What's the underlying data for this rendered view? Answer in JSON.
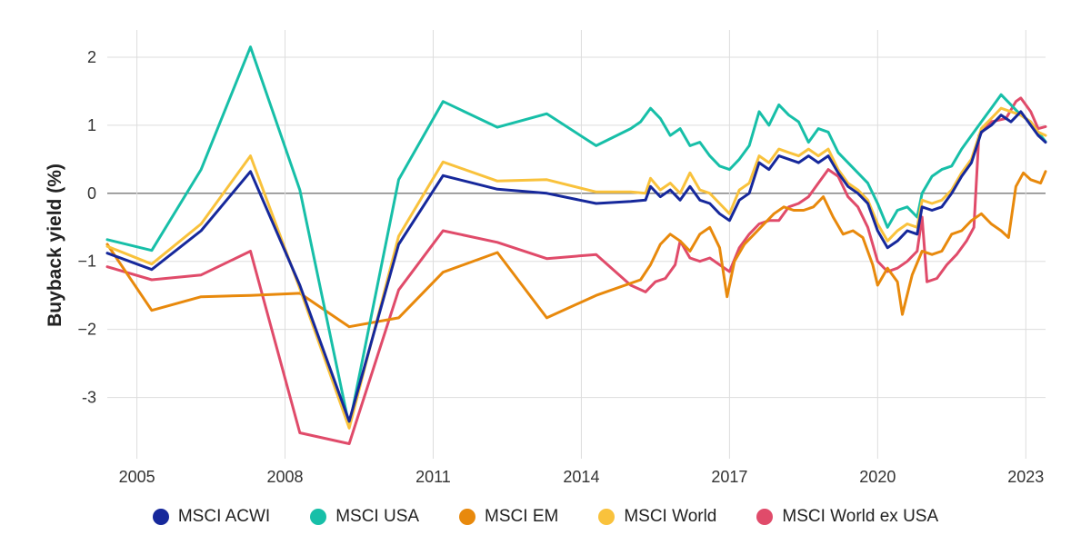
{
  "chart_data": {
    "type": "line",
    "title": "",
    "xlabel": "",
    "ylabel": "Buyback yield (%)",
    "xlim": [
      2004.4,
      2023.4
    ],
    "ylim": [
      -3.9,
      2.4
    ],
    "x_ticks": [
      2005,
      2008,
      2011,
      2014,
      2017,
      2020,
      2023
    ],
    "x_tick_labels": [
      "2005",
      "2008",
      "2011",
      "2014",
      "2017",
      "2020",
      "2023"
    ],
    "y_ticks": [
      -3,
      -2,
      -1,
      0,
      1,
      2
    ],
    "y_tick_labels": [
      "-3",
      "−2",
      "−1",
      "0",
      "1",
      "2"
    ],
    "grid": true,
    "zero_line": true,
    "legend_position": "bottom",
    "series": [
      {
        "name": "MSCI World ex USA",
        "color": "#E04B6A",
        "points": [
          [
            2004.4,
            -1.08
          ],
          [
            2005.3,
            -1.27
          ],
          [
            2006.3,
            -1.2
          ],
          [
            2007.3,
            -0.85
          ],
          [
            2008.3,
            -3.52
          ],
          [
            2009.3,
            -3.68
          ],
          [
            2010.3,
            -1.42
          ],
          [
            2011.2,
            -0.55
          ],
          [
            2012.3,
            -0.72
          ],
          [
            2013.3,
            -0.96
          ],
          [
            2014.3,
            -0.9
          ],
          [
            2015.0,
            -1.35
          ],
          [
            2015.3,
            -1.45
          ],
          [
            2015.5,
            -1.3
          ],
          [
            2015.7,
            -1.25
          ],
          [
            2015.9,
            -1.05
          ],
          [
            2016.0,
            -0.7
          ],
          [
            2016.2,
            -0.95
          ],
          [
            2016.4,
            -1.0
          ],
          [
            2016.6,
            -0.95
          ],
          [
            2016.8,
            -1.05
          ],
          [
            2017.0,
            -1.15
          ],
          [
            2017.2,
            -0.8
          ],
          [
            2017.4,
            -0.6
          ],
          [
            2017.6,
            -0.45
          ],
          [
            2017.8,
            -0.4
          ],
          [
            2018.0,
            -0.4
          ],
          [
            2018.2,
            -0.2
          ],
          [
            2018.4,
            -0.15
          ],
          [
            2018.6,
            -0.05
          ],
          [
            2018.8,
            0.15
          ],
          [
            2019.0,
            0.35
          ],
          [
            2019.2,
            0.25
          ],
          [
            2019.4,
            -0.05
          ],
          [
            2019.6,
            -0.2
          ],
          [
            2019.8,
            -0.5
          ],
          [
            2020.0,
            -1.0
          ],
          [
            2020.2,
            -1.15
          ],
          [
            2020.4,
            -1.1
          ],
          [
            2020.6,
            -1.0
          ],
          [
            2020.8,
            -0.85
          ],
          [
            2020.9,
            -0.35
          ],
          [
            2021.0,
            -1.3
          ],
          [
            2021.2,
            -1.25
          ],
          [
            2021.4,
            -1.05
          ],
          [
            2021.6,
            -0.9
          ],
          [
            2021.8,
            -0.7
          ],
          [
            2021.95,
            -0.5
          ],
          [
            2022.05,
            0.85
          ],
          [
            2022.3,
            1.05
          ],
          [
            2022.6,
            1.1
          ],
          [
            2022.8,
            1.35
          ],
          [
            2022.9,
            1.4
          ],
          [
            2023.1,
            1.2
          ],
          [
            2023.25,
            0.95
          ],
          [
            2023.4,
            0.98
          ]
        ]
      },
      {
        "name": "MSCI EM",
        "color": "#E8890C",
        "points": [
          [
            2004.4,
            -0.75
          ],
          [
            2005.3,
            -1.72
          ],
          [
            2006.3,
            -1.52
          ],
          [
            2007.3,
            -1.5
          ],
          [
            2008.3,
            -1.47
          ],
          [
            2009.3,
            -1.96
          ],
          [
            2010.3,
            -1.83
          ],
          [
            2011.2,
            -1.16
          ],
          [
            2012.3,
            -0.87
          ],
          [
            2013.3,
            -1.83
          ],
          [
            2014.3,
            -1.5
          ],
          [
            2015.2,
            -1.27
          ],
          [
            2015.4,
            -1.05
          ],
          [
            2015.6,
            -0.75
          ],
          [
            2015.8,
            -0.6
          ],
          [
            2016.0,
            -0.7
          ],
          [
            2016.2,
            -0.85
          ],
          [
            2016.4,
            -0.6
          ],
          [
            2016.6,
            -0.5
          ],
          [
            2016.8,
            -0.8
          ],
          [
            2016.95,
            -1.52
          ],
          [
            2017.1,
            -1.0
          ],
          [
            2017.3,
            -0.75
          ],
          [
            2017.5,
            -0.6
          ],
          [
            2017.7,
            -0.45
          ],
          [
            2017.9,
            -0.3
          ],
          [
            2018.1,
            -0.2
          ],
          [
            2018.3,
            -0.25
          ],
          [
            2018.5,
            -0.25
          ],
          [
            2018.7,
            -0.2
          ],
          [
            2018.9,
            -0.05
          ],
          [
            2019.1,
            -0.35
          ],
          [
            2019.3,
            -0.6
          ],
          [
            2019.5,
            -0.55
          ],
          [
            2019.7,
            -0.65
          ],
          [
            2019.9,
            -1.05
          ],
          [
            2020.0,
            -1.35
          ],
          [
            2020.2,
            -1.1
          ],
          [
            2020.4,
            -1.3
          ],
          [
            2020.5,
            -1.78
          ],
          [
            2020.7,
            -1.2
          ],
          [
            2020.9,
            -0.85
          ],
          [
            2021.1,
            -0.9
          ],
          [
            2021.3,
            -0.85
          ],
          [
            2021.5,
            -0.6
          ],
          [
            2021.7,
            -0.55
          ],
          [
            2021.9,
            -0.4
          ],
          [
            2022.1,
            -0.3
          ],
          [
            2022.3,
            -0.45
          ],
          [
            2022.5,
            -0.55
          ],
          [
            2022.65,
            -0.65
          ],
          [
            2022.8,
            0.1
          ],
          [
            2022.95,
            0.3
          ],
          [
            2023.1,
            0.2
          ],
          [
            2023.3,
            0.15
          ],
          [
            2023.4,
            0.32
          ]
        ]
      },
      {
        "name": "MSCI USA",
        "color": "#17BFA8",
        "points": [
          [
            2004.4,
            -0.68
          ],
          [
            2005.3,
            -0.84
          ],
          [
            2006.3,
            0.35
          ],
          [
            2007.3,
            2.15
          ],
          [
            2008.3,
            0.05
          ],
          [
            2009.3,
            -3.42
          ],
          [
            2010.3,
            0.2
          ],
          [
            2011.2,
            1.35
          ],
          [
            2012.3,
            0.97
          ],
          [
            2013.3,
            1.17
          ],
          [
            2014.3,
            0.7
          ],
          [
            2015.0,
            0.95
          ],
          [
            2015.2,
            1.05
          ],
          [
            2015.4,
            1.25
          ],
          [
            2015.6,
            1.1
          ],
          [
            2015.8,
            0.85
          ],
          [
            2016.0,
            0.95
          ],
          [
            2016.2,
            0.7
          ],
          [
            2016.4,
            0.75
          ],
          [
            2016.6,
            0.55
          ],
          [
            2016.8,
            0.4
          ],
          [
            2017.0,
            0.35
          ],
          [
            2017.2,
            0.5
          ],
          [
            2017.4,
            0.7
          ],
          [
            2017.6,
            1.2
          ],
          [
            2017.8,
            1.0
          ],
          [
            2018.0,
            1.3
          ],
          [
            2018.2,
            1.15
          ],
          [
            2018.4,
            1.05
          ],
          [
            2018.6,
            0.75
          ],
          [
            2018.8,
            0.95
          ],
          [
            2019.0,
            0.9
          ],
          [
            2019.2,
            0.6
          ],
          [
            2019.4,
            0.45
          ],
          [
            2019.6,
            0.3
          ],
          [
            2019.8,
            0.15
          ],
          [
            2020.0,
            -0.15
          ],
          [
            2020.2,
            -0.5
          ],
          [
            2020.4,
            -0.25
          ],
          [
            2020.6,
            -0.2
          ],
          [
            2020.8,
            -0.35
          ],
          [
            2020.9,
            0.0
          ],
          [
            2021.1,
            0.25
          ],
          [
            2021.3,
            0.35
          ],
          [
            2021.5,
            0.4
          ],
          [
            2021.7,
            0.65
          ],
          [
            2021.9,
            0.85
          ],
          [
            2022.1,
            1.05
          ],
          [
            2022.3,
            1.25
          ],
          [
            2022.5,
            1.45
          ],
          [
            2022.7,
            1.3
          ],
          [
            2022.9,
            1.15
          ],
          [
            2023.1,
            1.05
          ],
          [
            2023.25,
            0.9
          ],
          [
            2023.4,
            0.76
          ]
        ]
      },
      {
        "name": "MSCI World",
        "color": "#F9C23C",
        "points": [
          [
            2004.4,
            -0.78
          ],
          [
            2005.3,
            -1.04
          ],
          [
            2006.3,
            -0.45
          ],
          [
            2007.3,
            0.55
          ],
          [
            2008.3,
            -1.4
          ],
          [
            2009.3,
            -3.45
          ],
          [
            2010.3,
            -0.63
          ],
          [
            2011.2,
            0.46
          ],
          [
            2012.3,
            0.18
          ],
          [
            2013.3,
            0.2
          ],
          [
            2014.3,
            0.02
          ],
          [
            2015.0,
            0.02
          ],
          [
            2015.3,
            0.0
          ],
          [
            2015.4,
            0.22
          ],
          [
            2015.6,
            0.05
          ],
          [
            2015.8,
            0.15
          ],
          [
            2016.0,
            0.0
          ],
          [
            2016.2,
            0.3
          ],
          [
            2016.4,
            0.05
          ],
          [
            2016.6,
            0.0
          ],
          [
            2016.8,
            -0.15
          ],
          [
            2017.0,
            -0.3
          ],
          [
            2017.2,
            0.05
          ],
          [
            2017.4,
            0.15
          ],
          [
            2017.6,
            0.55
          ],
          [
            2017.8,
            0.45
          ],
          [
            2018.0,
            0.65
          ],
          [
            2018.2,
            0.6
          ],
          [
            2018.4,
            0.55
          ],
          [
            2018.6,
            0.65
          ],
          [
            2018.8,
            0.55
          ],
          [
            2019.0,
            0.65
          ],
          [
            2019.2,
            0.35
          ],
          [
            2019.4,
            0.15
          ],
          [
            2019.6,
            0.05
          ],
          [
            2019.8,
            -0.1
          ],
          [
            2020.0,
            -0.45
          ],
          [
            2020.2,
            -0.7
          ],
          [
            2020.4,
            -0.55
          ],
          [
            2020.6,
            -0.45
          ],
          [
            2020.8,
            -0.5
          ],
          [
            2020.9,
            -0.1
          ],
          [
            2021.1,
            -0.15
          ],
          [
            2021.3,
            -0.1
          ],
          [
            2021.5,
            0.05
          ],
          [
            2021.7,
            0.3
          ],
          [
            2021.9,
            0.5
          ],
          [
            2022.1,
            0.95
          ],
          [
            2022.3,
            1.1
          ],
          [
            2022.5,
            1.25
          ],
          [
            2022.7,
            1.2
          ],
          [
            2022.9,
            1.15
          ],
          [
            2023.1,
            1.05
          ],
          [
            2023.25,
            0.9
          ],
          [
            2023.4,
            0.85
          ]
        ]
      },
      {
        "name": "MSCI ACWI",
        "color": "#16289B",
        "points": [
          [
            2004.4,
            -0.88
          ],
          [
            2005.3,
            -1.12
          ],
          [
            2006.3,
            -0.55
          ],
          [
            2007.3,
            0.32
          ],
          [
            2008.3,
            -1.35
          ],
          [
            2009.3,
            -3.35
          ],
          [
            2010.3,
            -0.75
          ],
          [
            2011.2,
            0.26
          ],
          [
            2012.3,
            0.06
          ],
          [
            2013.3,
            0.0
          ],
          [
            2014.3,
            -0.15
          ],
          [
            2015.0,
            -0.12
          ],
          [
            2015.3,
            -0.1
          ],
          [
            2015.4,
            0.1
          ],
          [
            2015.6,
            -0.05
          ],
          [
            2015.8,
            0.05
          ],
          [
            2016.0,
            -0.1
          ],
          [
            2016.2,
            0.1
          ],
          [
            2016.4,
            -0.1
          ],
          [
            2016.6,
            -0.15
          ],
          [
            2016.8,
            -0.3
          ],
          [
            2017.0,
            -0.4
          ],
          [
            2017.2,
            -0.1
          ],
          [
            2017.4,
            0.0
          ],
          [
            2017.6,
            0.45
          ],
          [
            2017.8,
            0.35
          ],
          [
            2018.0,
            0.55
          ],
          [
            2018.2,
            0.5
          ],
          [
            2018.4,
            0.45
          ],
          [
            2018.6,
            0.55
          ],
          [
            2018.8,
            0.45
          ],
          [
            2019.0,
            0.55
          ],
          [
            2019.2,
            0.3
          ],
          [
            2019.4,
            0.1
          ],
          [
            2019.6,
            0.0
          ],
          [
            2019.8,
            -0.15
          ],
          [
            2020.0,
            -0.55
          ],
          [
            2020.2,
            -0.8
          ],
          [
            2020.4,
            -0.7
          ],
          [
            2020.6,
            -0.55
          ],
          [
            2020.8,
            -0.6
          ],
          [
            2020.9,
            -0.2
          ],
          [
            2021.1,
            -0.25
          ],
          [
            2021.3,
            -0.2
          ],
          [
            2021.5,
            0.0
          ],
          [
            2021.7,
            0.25
          ],
          [
            2021.9,
            0.45
          ],
          [
            2022.1,
            0.9
          ],
          [
            2022.3,
            1.0
          ],
          [
            2022.5,
            1.15
          ],
          [
            2022.7,
            1.05
          ],
          [
            2022.9,
            1.2
          ],
          [
            2023.1,
            1.0
          ],
          [
            2023.25,
            0.85
          ],
          [
            2023.4,
            0.75
          ]
        ]
      }
    ],
    "legend": [
      {
        "label": "MSCI ACWI",
        "color": "#16289B"
      },
      {
        "label": "MSCI USA",
        "color": "#17BFA8"
      },
      {
        "label": "MSCI EM",
        "color": "#E8890C"
      },
      {
        "label": "MSCI World",
        "color": "#F9C23C"
      },
      {
        "label": "MSCI World ex USA",
        "color": "#E04B6A"
      }
    ]
  }
}
